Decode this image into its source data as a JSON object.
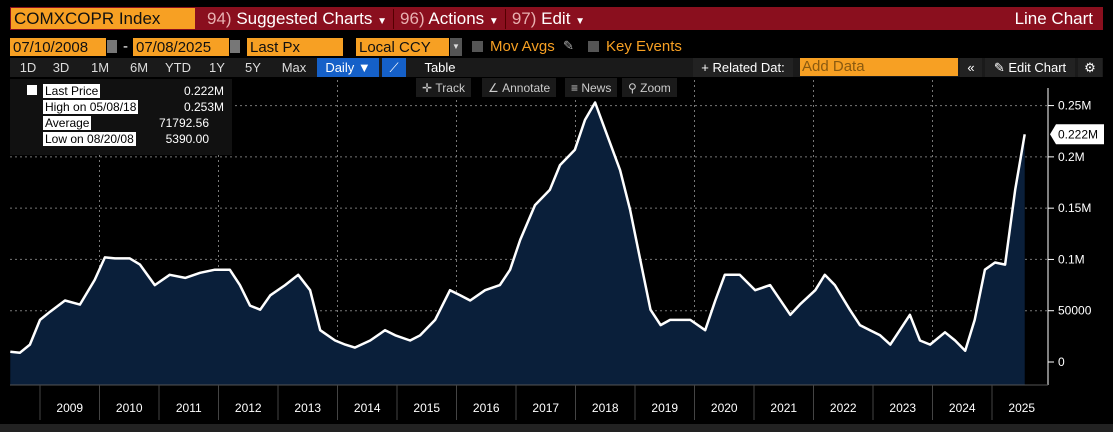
{
  "header": {
    "ticker": "COMXCOPR Index",
    "menus": [
      {
        "num": "94)",
        "label": "Suggested Charts"
      },
      {
        "num": "96)",
        "label": "Actions"
      },
      {
        "num": "97)",
        "label": "Edit"
      }
    ],
    "chart_type": "Line Chart"
  },
  "controls": {
    "start_date": "07/10/2008",
    "end_date": "07/08/2025",
    "dash": "-",
    "field": "Last Px",
    "currency": "Local CCY",
    "mov_avgs": "Mov Avgs",
    "key_events": "Key Events"
  },
  "periods": [
    "1D",
    "3D",
    "1M",
    "6M",
    "YTD",
    "1Y",
    "5Y",
    "Max"
  ],
  "frequency": "Daily ▼",
  "table_label": "Table",
  "related_data": "+ Related Dat:",
  "add_data_placeholder": "Add Data",
  "edit_chart": "Edit Chart",
  "chart_tools": [
    "Track",
    "Annotate",
    "News",
    "Zoom"
  ],
  "legend": [
    {
      "label": "Last Price",
      "value": "0.222M"
    },
    {
      "label": "High on 05/08/18",
      "value": "0.253M"
    },
    {
      "label": "Average",
      "value": "71792.56"
    },
    {
      "label": "Low on 08/20/08",
      "value": "5390.00"
    }
  ],
  "colors": {
    "accent": "#f7a023",
    "header": "#8a0f1e",
    "fill": "#0a1f3a",
    "line": "#ffffff"
  },
  "chart_data": {
    "type": "area",
    "title": "COMXCOPR Index",
    "ylabel": "Last Px",
    "ylim": [
      0,
      275000
    ],
    "xlim": [
      2008.5,
      2025.55
    ],
    "grid": true,
    "yticks": [
      0,
      50000,
      100000,
      150000,
      200000,
      250000
    ],
    "ytick_labels": [
      "0",
      "50000",
      "0.1M",
      "0.15M",
      "0.2M",
      "0.25M"
    ],
    "xtick_labels": [
      "2009",
      "2010",
      "2011",
      "2012",
      "2013",
      "2014",
      "2015",
      "2016",
      "2017",
      "2018",
      "2019",
      "2020",
      "2021",
      "2022",
      "2023",
      "2024",
      "2025"
    ],
    "last_value_label": "0.222M",
    "series": [
      {
        "name": "Last Price",
        "points": [
          [
            2008.5,
            10000
          ],
          [
            2008.66,
            9000
          ],
          [
            2008.83,
            17000
          ],
          [
            2009.0,
            41000
          ],
          [
            2009.17,
            49000
          ],
          [
            2009.42,
            60000
          ],
          [
            2009.67,
            56000
          ],
          [
            2009.92,
            80000
          ],
          [
            2010.09,
            102000
          ],
          [
            2010.26,
            101000
          ],
          [
            2010.51,
            101000
          ],
          [
            2010.68,
            95000
          ],
          [
            2010.93,
            75000
          ],
          [
            2011.18,
            85000
          ],
          [
            2011.44,
            82000
          ],
          [
            2011.69,
            87000
          ],
          [
            2011.94,
            90000
          ],
          [
            2012.19,
            90000
          ],
          [
            2012.36,
            75000
          ],
          [
            2012.53,
            55000
          ],
          [
            2012.7,
            51000
          ],
          [
            2012.87,
            65000
          ],
          [
            2013.12,
            75000
          ],
          [
            2013.34,
            85000
          ],
          [
            2013.54,
            70000
          ],
          [
            2013.71,
            31000
          ],
          [
            2013.96,
            21000
          ],
          [
            2014.13,
            17000
          ],
          [
            2014.29,
            14000
          ],
          [
            2014.55,
            21000
          ],
          [
            2014.8,
            31000
          ],
          [
            2014.97,
            26000
          ],
          [
            2015.22,
            21000
          ],
          [
            2015.39,
            26000
          ],
          [
            2015.64,
            41000
          ],
          [
            2015.89,
            70000
          ],
          [
            2016.06,
            65000
          ],
          [
            2016.23,
            60000
          ],
          [
            2016.48,
            70000
          ],
          [
            2016.73,
            75000
          ],
          [
            2016.9,
            90000
          ],
          [
            2017.07,
            119000
          ],
          [
            2017.32,
            153000
          ],
          [
            2017.57,
            168000
          ],
          [
            2017.74,
            192000
          ],
          [
            2017.99,
            207000
          ],
          [
            2018.16,
            236000
          ],
          [
            2018.33,
            253000
          ],
          [
            2018.5,
            226000
          ],
          [
            2018.75,
            187000
          ],
          [
            2018.92,
            148000
          ],
          [
            2019.09,
            99000
          ],
          [
            2019.26,
            51000
          ],
          [
            2019.43,
            36000
          ],
          [
            2019.59,
            41000
          ],
          [
            2019.93,
            41000
          ],
          [
            2020.18,
            31000
          ],
          [
            2020.35,
            60000
          ],
          [
            2020.51,
            85000
          ],
          [
            2020.76,
            85000
          ],
          [
            2021.02,
            70000
          ],
          [
            2021.27,
            75000
          ],
          [
            2021.61,
            46000
          ],
          [
            2021.77,
            56000
          ],
          [
            2022.03,
            70000
          ],
          [
            2022.19,
            85000
          ],
          [
            2022.36,
            75000
          ],
          [
            2022.61,
            51000
          ],
          [
            2022.78,
            36000
          ],
          [
            2022.95,
            31000
          ],
          [
            2023.12,
            26000
          ],
          [
            2023.29,
            17000
          ],
          [
            2023.45,
            31000
          ],
          [
            2023.62,
            46000
          ],
          [
            2023.79,
            21000
          ],
          [
            2023.96,
            17000
          ],
          [
            2024.21,
            29000
          ],
          [
            2024.38,
            21000
          ],
          [
            2024.55,
            11000
          ],
          [
            2024.71,
            41000
          ],
          [
            2024.88,
            90000
          ],
          [
            2025.05,
            97000
          ],
          [
            2025.22,
            95000
          ],
          [
            2025.39,
            168000
          ],
          [
            2025.55,
            222000
          ]
        ]
      }
    ]
  }
}
